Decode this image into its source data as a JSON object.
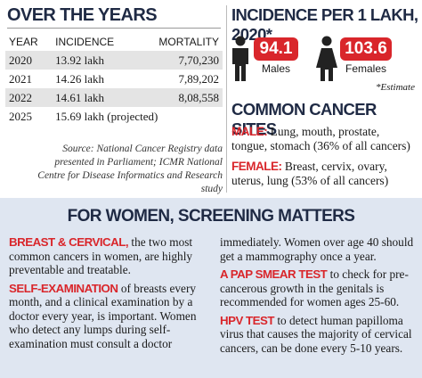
{
  "over_the_years": {
    "title": "OVER THE YEARS",
    "columns": [
      "YEAR",
      "INCIDENCE",
      "MORTALITY"
    ],
    "rows": [
      [
        "2020",
        "13.92 lakh",
        "7,70,230"
      ],
      [
        "2021",
        "14.26 lakh",
        "7,89,202"
      ],
      [
        "2022",
        "14.61 lakh",
        "8,08,558"
      ],
      [
        "2025",
        "15.69 lakh (projected)"
      ]
    ],
    "source": "Source: National Cancer Registry data presented in Parliament; ICMR National Centre for Disease Informatics and Research study"
  },
  "incidence": {
    "title": "INCIDENCE PER 1 LAKH, 2020*",
    "males": {
      "value": "94.1",
      "label": "Males"
    },
    "females": {
      "value": "103.6",
      "label": "Females"
    },
    "note": "*Estimate"
  },
  "common_sites": {
    "title": "COMMON CANCER SITES",
    "male": {
      "label": "MALE:",
      "text": "Lung, mouth, prostate, tongue, stomach (36% of all cancers)"
    },
    "female": {
      "label": "FEMALE:",
      "text": "Breast, cervix, ovary, uterus, lung (53% of all cancers)"
    }
  },
  "screening": {
    "title": "FOR WOMEN, SCREENING MATTERS",
    "items": [
      {
        "heading": "BREAST & CERVICAL,",
        "text": "the two most common cancers in women, are highly preventable and treatable."
      },
      {
        "heading": "SELF-EXAMINATION",
        "text": "of breasts every month, and a clinical examination by a doctor every year, is important. Women who detect any lumps during self-examination must consult a doctor immediately. Women over age 40 should get a mammography once a year."
      },
      {
        "heading": "A PAP SMEAR TEST",
        "text": "to check for pre-cancerous growth in the genitals is recommended for women ages 25-60."
      },
      {
        "heading": "HPV TEST",
        "text": "to detect human papilloma virus that causes the majority of cervical cancers, can be done every 5-10 years."
      }
    ]
  }
}
